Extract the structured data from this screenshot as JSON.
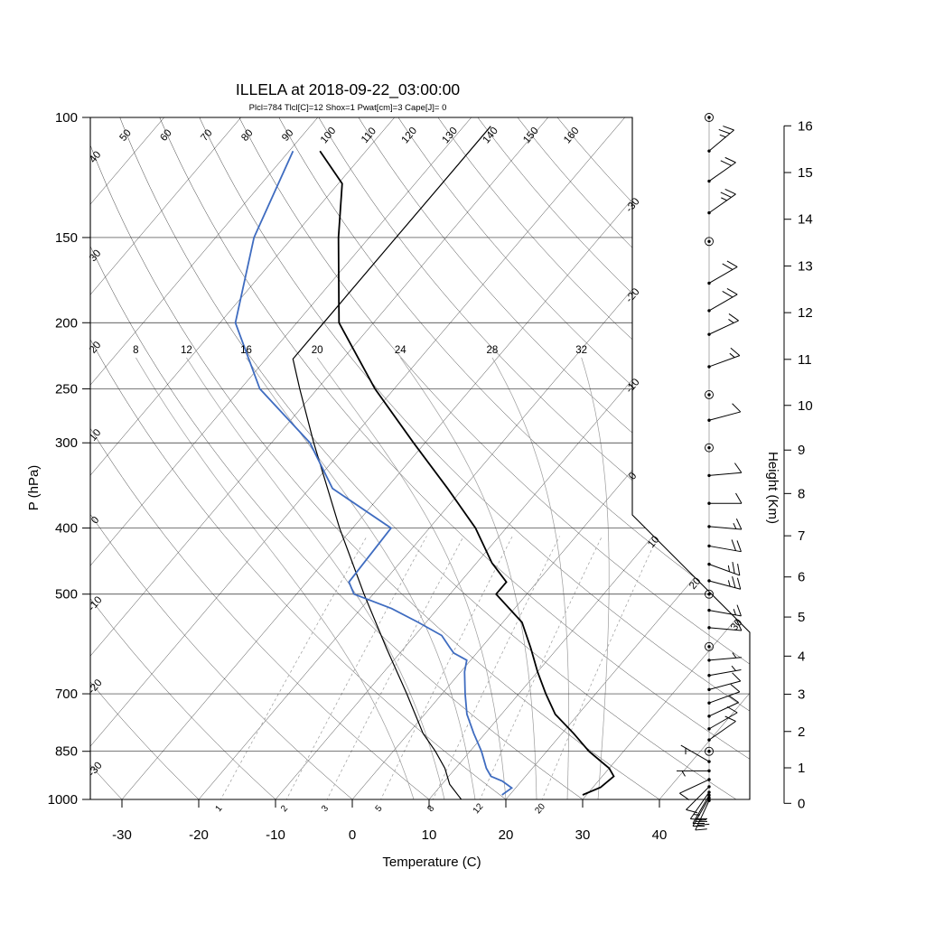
{
  "title": "ILLELA at 2018-09-22_03:00:00",
  "subtitle": "Plcl=784 Tlcl[C]=12 Shox=1 Pwat[cm]=3 Cape[J]= 0",
  "subtitle_color": "#bf4b28",
  "axes": {
    "pressure": {
      "label": "P (hPa)",
      "ticks": [
        100,
        150,
        200,
        250,
        300,
        400,
        500,
        700,
        850,
        1000
      ]
    },
    "temperature": {
      "label": "Temperature (C)",
      "ticks": [
        -30,
        -20,
        -10,
        0,
        10,
        20,
        30,
        40
      ]
    },
    "height": {
      "label": "Height (Km)",
      "ticks": [
        0,
        1,
        2,
        3,
        4,
        5,
        6,
        7,
        8,
        9,
        10,
        11,
        12,
        13,
        14,
        15,
        16
      ]
    }
  },
  "chart_data": {
    "type": "line",
    "variant": "skew-t-log-p-sounding",
    "station": "ILLELA",
    "datetime": "2018-09-22_03:00:00",
    "indices": {
      "Plcl": 784,
      "Tlcl_C": 12,
      "Shox": 1,
      "Pwat_cm": 3,
      "Cape_J": 0
    },
    "isotherm_values_C": [
      -110,
      -100,
      -90,
      -80,
      -70,
      -60,
      -50,
      -40,
      -30,
      -20,
      -10,
      0,
      10,
      20,
      30,
      40
    ],
    "isotherm_edge_labels": [
      -30,
      -20,
      -10,
      0,
      10,
      20,
      30
    ],
    "dry_adiabat_values_C": [
      -30,
      -20,
      -10,
      0,
      10,
      20,
      30,
      40,
      50,
      60,
      70,
      80,
      90,
      100,
      110,
      120,
      130,
      140,
      150,
      160
    ],
    "moist_adiabat_values_C": [
      8,
      12,
      16,
      20,
      24,
      28,
      32
    ],
    "mixing_ratio_values_gkg": [
      1,
      2,
      3,
      5,
      8,
      12,
      20
    ],
    "temperature_profile": [
      [
        985,
        29.5
      ],
      [
        960,
        31
      ],
      [
        925,
        31.5
      ],
      [
        900,
        30
      ],
      [
        850,
        25.5
      ],
      [
        800,
        21.5
      ],
      [
        750,
        17
      ],
      [
        700,
        13.5
      ],
      [
        650,
        10
      ],
      [
        600,
        6.5
      ],
      [
        550,
        2.5
      ],
      [
        500,
        -4
      ],
      [
        480,
        -4
      ],
      [
        450,
        -8
      ],
      [
        400,
        -14
      ],
      [
        350,
        -22
      ],
      [
        300,
        -31.5
      ],
      [
        250,
        -42.5
      ],
      [
        200,
        -54.5
      ],
      [
        150,
        -64
      ],
      [
        125,
        -69.5
      ],
      [
        112,
        -76
      ]
    ],
    "dewpoint_profile": [
      [
        985,
        19
      ],
      [
        962,
        19.5
      ],
      [
        940,
        17.5
      ],
      [
        925,
        15.5
      ],
      [
        900,
        14
      ],
      [
        850,
        11.5
      ],
      [
        800,
        8.5
      ],
      [
        750,
        5.5
      ],
      [
        700,
        3
      ],
      [
        650,
        0.5
      ],
      [
        625,
        -0.5
      ],
      [
        610,
        -3
      ],
      [
        600,
        -4
      ],
      [
        575,
        -6.5
      ],
      [
        550,
        -11
      ],
      [
        525,
        -16
      ],
      [
        500,
        -22.5
      ],
      [
        480,
        -24.5
      ],
      [
        400,
        -25
      ],
      [
        350,
        -37
      ],
      [
        300,
        -45
      ],
      [
        250,
        -57.5
      ],
      [
        200,
        -68
      ],
      [
        150,
        -75
      ],
      [
        112,
        -79.5
      ]
    ],
    "standard_atmosphere_curve": [
      [
        1013,
        15
      ],
      [
        950,
        11
      ],
      [
        900,
        8.6
      ],
      [
        850,
        5.5
      ],
      [
        800,
        1.9
      ],
      [
        700,
        -4.6
      ],
      [
        600,
        -12.3
      ],
      [
        500,
        -21.2
      ],
      [
        400,
        -31.7
      ],
      [
        300,
        -44.5
      ],
      [
        250,
        -52.3
      ],
      [
        226,
        -56.5
      ],
      [
        200,
        -56.5
      ],
      [
        150,
        -56.5
      ],
      [
        103,
        -56.5
      ]
    ],
    "wind_barbs": [
      [
        1004,
        205,
        25
      ],
      [
        995,
        210,
        20
      ],
      [
        986,
        210,
        20
      ],
      [
        976,
        215,
        15
      ],
      [
        958,
        225,
        10
      ],
      [
        935,
        245,
        10
      ],
      [
        908,
        270,
        5
      ],
      [
        880,
        300,
        5
      ],
      [
        850,
        0,
        0
      ],
      [
        818,
        55,
        10
      ],
      [
        788,
        60,
        10
      ],
      [
        755,
        65,
        10
      ],
      [
        722,
        70,
        10
      ],
      [
        690,
        75,
        10
      ],
      [
        658,
        80,
        5
      ],
      [
        625,
        85,
        5
      ],
      [
        597,
        0,
        0
      ],
      [
        560,
        95,
        10
      ],
      [
        528,
        100,
        15
      ],
      [
        500,
        0,
        0
      ],
      [
        478,
        105,
        25
      ],
      [
        452,
        110,
        25
      ],
      [
        425,
        100,
        20
      ],
      [
        398,
        95,
        15
      ],
      [
        368,
        90,
        10
      ],
      [
        335,
        85,
        10
      ],
      [
        305,
        0,
        0
      ],
      [
        278,
        75,
        10
      ],
      [
        255,
        0,
        0
      ],
      [
        232,
        70,
        15
      ],
      [
        208,
        65,
        15
      ],
      [
        192,
        60,
        20
      ],
      [
        175,
        60,
        20
      ],
      [
        152,
        0,
        0
      ],
      [
        138,
        55,
        25
      ],
      [
        124,
        55,
        20
      ],
      [
        112,
        50,
        25
      ],
      [
        100,
        0,
        0
      ]
    ],
    "colors": {
      "temperature": "#000000",
      "dewpoint": "#3f6cc0",
      "standard_atmosphere": "#000000",
      "grid": "#3d3d3d",
      "light_lines": "#9b9b9b"
    }
  }
}
